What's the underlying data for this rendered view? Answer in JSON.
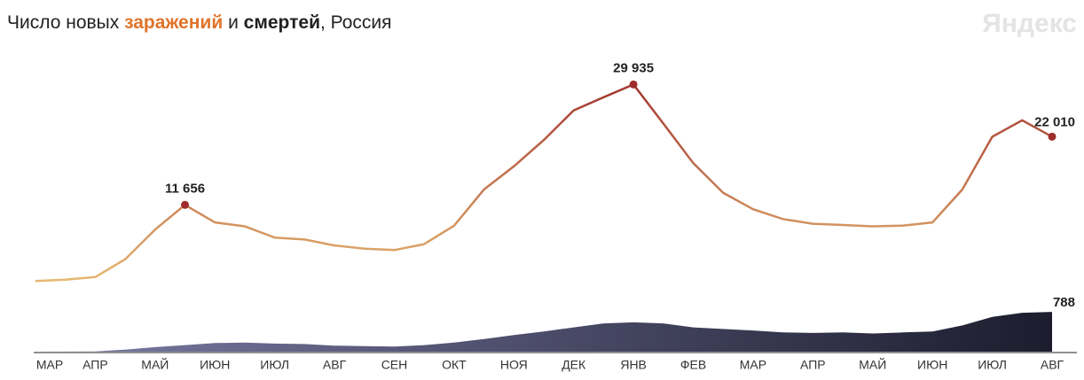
{
  "chart_data": {
    "type": "line",
    "title_parts": [
      "Число новых ",
      "заражений",
      " и ",
      "смертей",
      ", Россия"
    ],
    "logo": "Яндекс",
    "categories": [
      "МАР",
      null,
      "АПР",
      null,
      "МАЙ",
      null,
      "ИЮН",
      null,
      "ИЮЛ",
      null,
      "АВГ",
      null,
      "СЕН",
      null,
      "ОКТ",
      null,
      "НОЯ",
      null,
      "ДЕК",
      null,
      "ЯНВ",
      null,
      "ФЕВ",
      null,
      "МАР",
      null,
      "АПР",
      null,
      "МАЙ",
      null,
      "ИЮН",
      null,
      "ИЮЛ",
      null,
      "АВГ"
    ],
    "series": [
      {
        "name": "заражений",
        "colors": [
          "#e6b872",
          "#9e2d2b"
        ],
        "ylim": [
          0,
          32000
        ],
        "values": [
          100,
          300,
          700,
          3400,
          7900,
          11656,
          9000,
          8400,
          6700,
          6400,
          5500,
          5000,
          4800,
          5700,
          8500,
          14000,
          17500,
          21500,
          26000,
          28000,
          29935,
          24000,
          18000,
          13500,
          11000,
          9500,
          8800,
          8600,
          8400,
          8500,
          9000,
          14000,
          22000,
          24500,
          22010
        ],
        "value_labels": [
          null,
          null,
          null,
          null,
          null,
          "11 656",
          null,
          null,
          null,
          null,
          null,
          null,
          null,
          null,
          null,
          null,
          null,
          null,
          null,
          null,
          "29 935",
          null,
          null,
          null,
          null,
          null,
          null,
          null,
          null,
          null,
          null,
          null,
          null,
          null,
          "22 010"
        ]
      },
      {
        "name": "смертей",
        "colors": [
          "#7a7ba3",
          "#1c1c2e"
        ],
        "ylim": [
          0,
          1000
        ],
        "values": [
          0,
          1,
          5,
          40,
          90,
          130,
          170,
          180,
          160,
          150,
          120,
          110,
          100,
          130,
          180,
          250,
          330,
          400,
          480,
          560,
          580,
          560,
          480,
          450,
          420,
          380,
          370,
          380,
          360,
          380,
          400,
          520,
          690,
          770,
          788
        ],
        "value_labels": [
          null,
          null,
          null,
          null,
          null,
          null,
          null,
          null,
          null,
          null,
          null,
          null,
          null,
          null,
          null,
          null,
          null,
          null,
          null,
          null,
          null,
          null,
          null,
          null,
          null,
          null,
          null,
          null,
          null,
          null,
          null,
          null,
          null,
          null,
          "788"
        ]
      }
    ]
  }
}
